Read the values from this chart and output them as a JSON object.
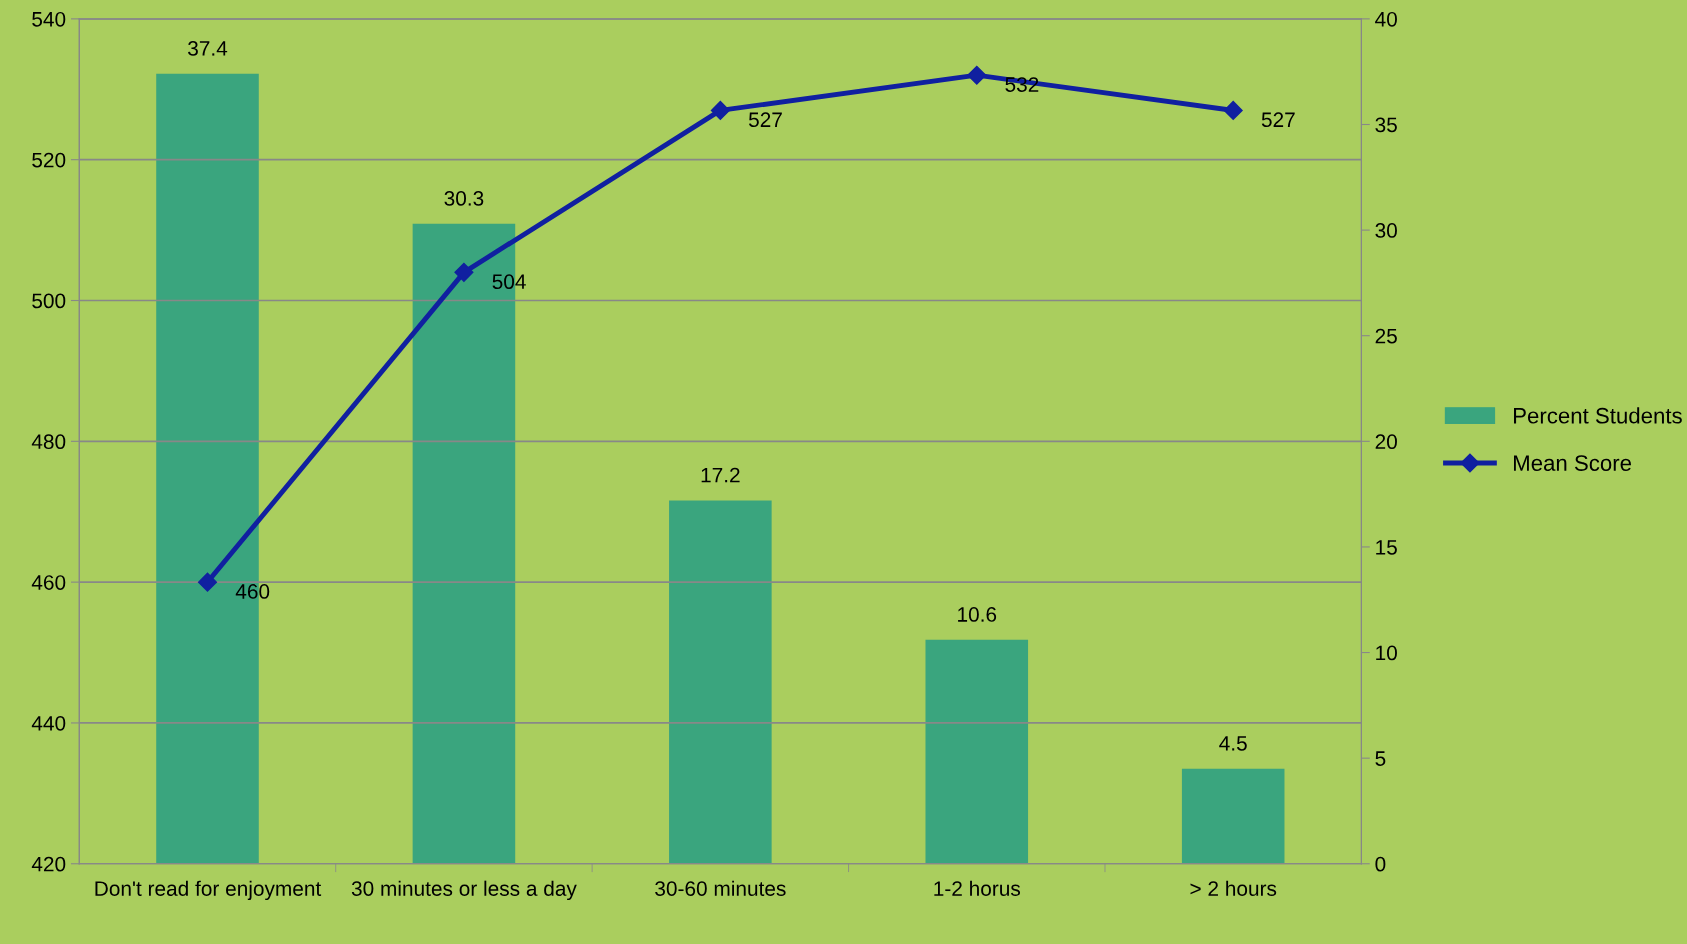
{
  "chart_data": {
    "type": "bar",
    "categories": [
      "Don't read for enjoyment",
      "30 minutes or less a day",
      "30-60 minutes",
      "1-2 horus",
      "> 2 hours"
    ],
    "series": [
      {
        "name": "Percent Students",
        "axis": "y2",
        "color": "#3aa57e",
        "values": [
          37.4,
          30.3,
          17.2,
          10.6,
          4.5
        ]
      },
      {
        "name": "Mean Score",
        "type": "line",
        "axis": "y",
        "color": "#1020a0",
        "values": [
          460,
          504,
          527,
          532,
          527
        ]
      }
    ],
    "ylim": [
      420,
      540
    ],
    "yticks": [
      420,
      440,
      460,
      480,
      500,
      520,
      540
    ],
    "y2lim": [
      0,
      40
    ],
    "y2ticks": [
      0,
      5,
      10,
      15,
      20,
      25,
      30,
      35,
      40
    ],
    "grid": "y",
    "legend": "right",
    "marker": "diamond",
    "line_style": "solid",
    "data_labels": true
  }
}
